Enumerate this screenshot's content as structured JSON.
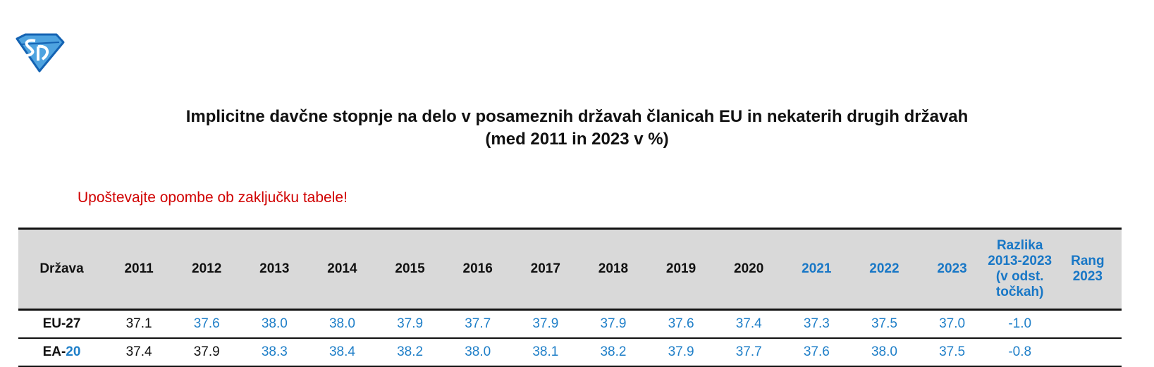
{
  "logo": {
    "name": "logo-icon",
    "colors": {
      "fill": "#4ea3e0",
      "stroke": "#1463b3"
    }
  },
  "title": {
    "line1": "Implicitne davčne stopnje na delo v posameznih državah članicah EU in nekaterih drugih državah",
    "line2": "(med 2011 in 2023 v %)"
  },
  "note": "Upoštevajte opombe ob zaključku tabele!",
  "colors": {
    "header_bg": "#d9d9d9",
    "blue": "#1f7fc8",
    "note_red": "#d00000"
  },
  "table": {
    "headers": [
      "Država",
      "2011",
      "2012",
      "2013",
      "2014",
      "2015",
      "2016",
      "2017",
      "2018",
      "2019",
      "2020",
      "2021",
      "2022",
      "2023",
      "Razlika 2013-2023 (v odst. točkah)",
      "Rang 2023"
    ],
    "rows": [
      {
        "country": "EU-27",
        "cells": [
          "37.1",
          "37.6",
          "38.0",
          "38.0",
          "37.9",
          "37.7",
          "37.9",
          "37.9",
          "37.6",
          "37.4",
          "37.3",
          "37.5",
          "37.0",
          "-1.0",
          ""
        ]
      },
      {
        "country_a": "EA-",
        "country_b": "20",
        "cells": [
          "37.4",
          "37.9",
          "38.3",
          "38.4",
          "38.2",
          "38.0",
          "38.1",
          "38.2",
          "37.9",
          "37.7",
          "37.6",
          "38.0",
          "37.5",
          "-0.8",
          ""
        ]
      }
    ]
  }
}
